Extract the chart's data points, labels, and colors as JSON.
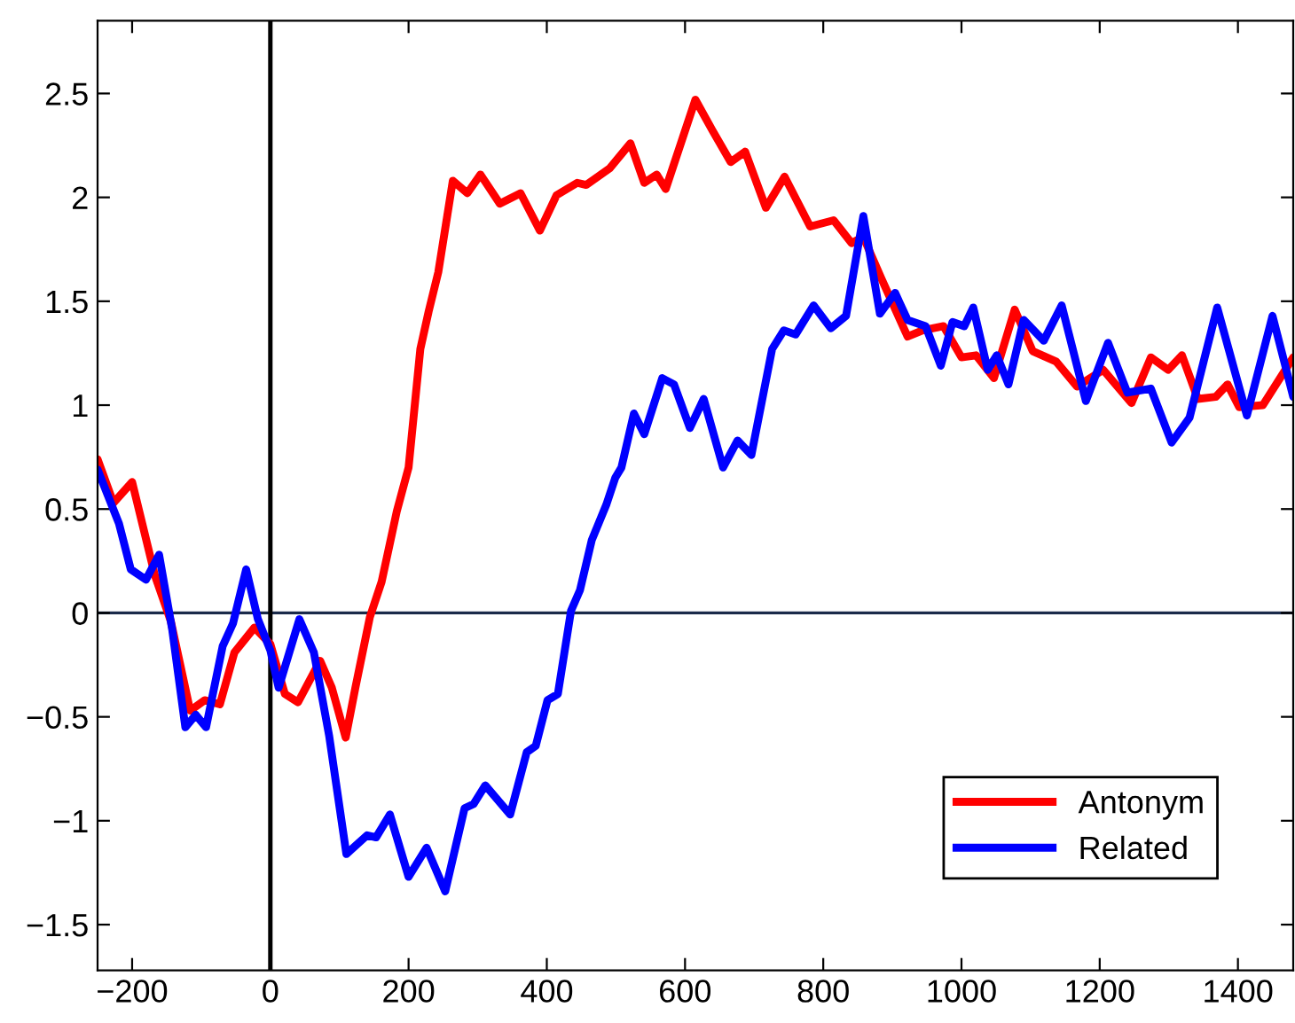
{
  "chart_data": {
    "type": "line",
    "xlim": [
      -250,
      1480
    ],
    "ylim": [
      -1.72,
      2.85
    ],
    "xticks": [
      -200,
      0,
      200,
      400,
      600,
      800,
      1000,
      1200,
      1400
    ],
    "yticks": [
      -1.5,
      -1,
      -0.5,
      0,
      0.5,
      1,
      1.5,
      2,
      2.5
    ],
    "grid": false,
    "legend": "bottom right",
    "line_style": "solid",
    "marker": "none",
    "ref_lines": [
      {
        "axis": "y",
        "value": 0,
        "color": "#1a2a4a"
      },
      {
        "axis": "x",
        "value": 0,
        "color": "#000000"
      }
    ],
    "series": [
      {
        "name": "Antonym",
        "color": "#ff0000",
        "x": [
          -250,
          -227,
          -200,
          -167,
          -144,
          -116,
          -95,
          -73,
          -52,
          -23,
          0,
          21,
          40,
          72,
          89,
          109,
          123,
          144,
          161,
          183,
          200,
          217,
          229,
          243,
          264,
          285,
          304,
          332,
          362,
          390,
          414,
          444,
          457,
          491,
          521,
          541,
          559,
          572,
          615,
          640,
          666,
          687,
          717,
          744,
          781,
          815,
          841,
          858,
          884,
          922,
          944,
          974,
          1000,
          1021,
          1047,
          1077,
          1103,
          1137,
          1167,
          1205,
          1246,
          1274,
          1299,
          1319,
          1342,
          1368,
          1385,
          1402,
          1436,
          1480
        ],
        "values": [
          0.74,
          0.53,
          0.63,
          0.18,
          -0.04,
          -0.47,
          -0.42,
          -0.44,
          -0.19,
          -0.07,
          -0.15,
          -0.39,
          -0.43,
          -0.23,
          -0.36,
          -0.6,
          -0.36,
          -0.02,
          0.15,
          0.49,
          0.7,
          1.27,
          1.45,
          1.64,
          2.08,
          2.02,
          2.11,
          1.97,
          2.02,
          1.84,
          2.01,
          2.07,
          2.06,
          2.14,
          2.26,
          2.07,
          2.11,
          2.04,
          2.47,
          2.32,
          2.17,
          2.22,
          1.95,
          2.1,
          1.86,
          1.89,
          1.78,
          1.81,
          1.61,
          1.33,
          1.36,
          1.38,
          1.23,
          1.24,
          1.13,
          1.46,
          1.26,
          1.21,
          1.09,
          1.17,
          1.01,
          1.23,
          1.17,
          1.24,
          1.03,
          1.04,
          1.1,
          0.99,
          1.0,
          1.23
        ]
      },
      {
        "name": "Related",
        "color": "#0000ff",
        "x": [
          -250,
          -219,
          -202,
          -180,
          -161,
          -142,
          -123,
          -108,
          -93,
          -69,
          -54,
          -35,
          -18,
          0,
          12,
          42,
          63,
          85,
          110,
          140,
          153,
          173,
          200,
          226,
          253,
          281,
          294,
          311,
          347,
          371,
          384,
          401,
          416,
          435,
          448,
          465,
          486,
          499,
          508,
          526,
          541,
          567,
          584,
          607,
          627,
          655,
          676,
          696,
          726,
          743,
          760,
          786,
          811,
          833,
          858,
          882,
          904,
          922,
          948,
          970,
          987,
          1004,
          1017,
          1038,
          1051,
          1068,
          1090,
          1119,
          1145,
          1180,
          1212,
          1240,
          1274,
          1304,
          1330,
          1370,
          1413,
          1450,
          1480
        ],
        "values": [
          0.69,
          0.43,
          0.21,
          0.16,
          0.28,
          -0.08,
          -0.55,
          -0.49,
          -0.55,
          -0.16,
          -0.05,
          0.21,
          -0.03,
          -0.18,
          -0.36,
          -0.03,
          -0.19,
          -0.59,
          -1.16,
          -1.07,
          -1.08,
          -0.97,
          -1.27,
          -1.13,
          -1.34,
          -0.94,
          -0.92,
          -0.83,
          -0.97,
          -0.67,
          -0.64,
          -0.42,
          -0.39,
          0.01,
          0.11,
          0.35,
          0.52,
          0.65,
          0.7,
          0.96,
          0.86,
          1.13,
          1.1,
          0.89,
          1.03,
          0.7,
          0.83,
          0.76,
          1.27,
          1.36,
          1.34,
          1.48,
          1.37,
          1.43,
          1.91,
          1.44,
          1.54,
          1.41,
          1.38,
          1.19,
          1.4,
          1.38,
          1.47,
          1.17,
          1.24,
          1.1,
          1.41,
          1.31,
          1.48,
          1.02,
          1.3,
          1.06,
          1.08,
          0.82,
          0.94,
          1.47,
          0.95,
          1.43,
          1.04
        ]
      }
    ]
  }
}
